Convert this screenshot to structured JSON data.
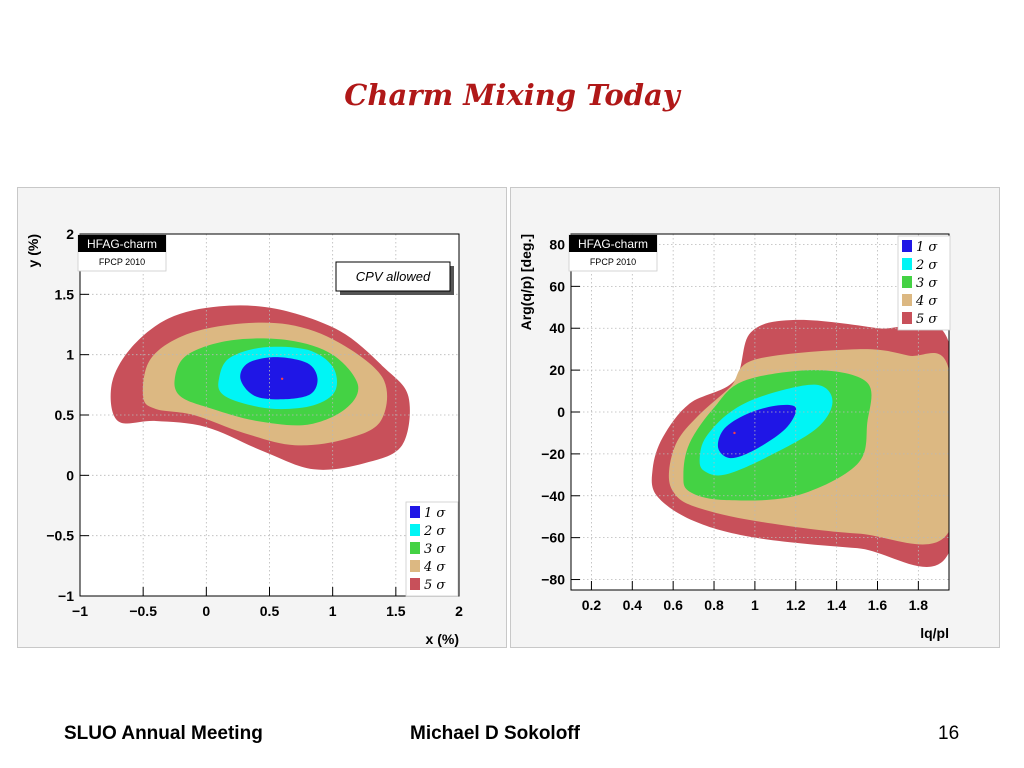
{
  "slide": {
    "title": "Charm Mixing Today",
    "footer_left": "SLUO Annual Meeting",
    "footer_center": "Michael D Sokoloff",
    "page_number": "16"
  },
  "colors": {
    "1sigma": "#1f16e6",
    "2sigma": "#00f5f5",
    "3sigma": "#44d244",
    "4sigma": "#dcb882",
    "5sigma": "#c8505a",
    "frame": "#000000",
    "grid": "#b8b8b8"
  },
  "chart_data": [
    {
      "type": "contour",
      "xlabel": "x (%)",
      "ylabel": "y (%)",
      "xlim": [
        -1,
        2
      ],
      "ylim": [
        -1,
        2
      ],
      "xticks": [
        "−1",
        "−0.5",
        "0",
        "0.5",
        "1",
        "1.5",
        "2"
      ],
      "yticks": [
        "−1",
        "−0.5",
        "0",
        "0.5",
        "1",
        "1.5",
        "2"
      ],
      "grid": true,
      "tag": "HFAG-charm",
      "tag_sub": "FPCP  2010",
      "annotation": "CPV allowed",
      "legend": [
        "1 σ",
        "2 σ",
        "3 σ",
        "4 σ",
        "5 σ"
      ],
      "legend_position": "bottom-right",
      "best_fit": [
        0.6,
        0.8
      ],
      "contours": [
        {
          "level": "5sigma",
          "points": [
            [
              -0.7,
              0.45
            ],
            [
              -0.75,
              0.75
            ],
            [
              -0.6,
              1.05
            ],
            [
              -0.3,
              1.3
            ],
            [
              0.1,
              1.4
            ],
            [
              0.55,
              1.38
            ],
            [
              1.05,
              1.2
            ],
            [
              1.4,
              0.9
            ],
            [
              1.6,
              0.65
            ],
            [
              1.55,
              0.25
            ],
            [
              1.25,
              0.1
            ],
            [
              0.85,
              0.05
            ],
            [
              0.45,
              0.2
            ],
            [
              0,
              0.4
            ],
            [
              -0.4,
              0.45
            ]
          ]
        },
        {
          "level": "4sigma",
          "points": [
            [
              -0.5,
              0.65
            ],
            [
              -0.45,
              0.95
            ],
            [
              -0.2,
              1.15
            ],
            [
              0.2,
              1.25
            ],
            [
              0.65,
              1.25
            ],
            [
              1.05,
              1.1
            ],
            [
              1.4,
              0.8
            ],
            [
              1.38,
              0.45
            ],
            [
              1.1,
              0.3
            ],
            [
              0.7,
              0.25
            ],
            [
              0.3,
              0.35
            ],
            [
              -0.1,
              0.5
            ],
            [
              -0.4,
              0.55
            ]
          ]
        },
        {
          "level": "3sigma",
          "points": [
            [
              -0.25,
              0.8
            ],
            [
              -0.15,
              1.0
            ],
            [
              0.2,
              1.12
            ],
            [
              0.65,
              1.12
            ],
            [
              1.0,
              1.0
            ],
            [
              1.2,
              0.75
            ],
            [
              1.1,
              0.55
            ],
            [
              0.8,
              0.42
            ],
            [
              0.4,
              0.45
            ],
            [
              0.05,
              0.55
            ],
            [
              -0.2,
              0.65
            ]
          ]
        },
        {
          "level": "2sigma",
          "points": [
            [
              0.1,
              0.8
            ],
            [
              0.18,
              0.97
            ],
            [
              0.45,
              1.06
            ],
            [
              0.8,
              1.04
            ],
            [
              1.0,
              0.9
            ],
            [
              1.02,
              0.7
            ],
            [
              0.85,
              0.58
            ],
            [
              0.55,
              0.55
            ],
            [
              0.28,
              0.6
            ],
            [
              0.12,
              0.68
            ]
          ]
        },
        {
          "level": "1sigma",
          "points": [
            [
              0.27,
              0.8
            ],
            [
              0.33,
              0.93
            ],
            [
              0.55,
              0.98
            ],
            [
              0.8,
              0.93
            ],
            [
              0.88,
              0.8
            ],
            [
              0.82,
              0.67
            ],
            [
              0.6,
              0.63
            ],
            [
              0.38,
              0.66
            ]
          ]
        }
      ]
    },
    {
      "type": "contour",
      "xlabel": "lq/pl",
      "ylabel": "Arg(q/p) [deg.]",
      "xlim": [
        0.1,
        1.95
      ],
      "ylim": [
        -85,
        85
      ],
      "xticks": [
        "0.2",
        "0.4",
        "0.6",
        "0.8",
        "1",
        "1.2",
        "1.4",
        "1.6",
        "1.8"
      ],
      "yticks": [
        "−80",
        "−60",
        "−40",
        "−20",
        "0",
        "20",
        "40",
        "60",
        "80"
      ],
      "grid": true,
      "tag": "HFAG-charm",
      "tag_sub": "FPCP  2010",
      "legend": [
        "1 σ",
        "2 σ",
        "3 σ",
        "4 σ",
        "5 σ"
      ],
      "legend_position": "top-right",
      "best_fit": [
        0.9,
        -10
      ],
      "contours": [
        {
          "level": "5sigma",
          "points": [
            [
              0.5,
              -27
            ],
            [
              0.55,
              -12
            ],
            [
              0.68,
              4
            ],
            [
              0.9,
              15
            ],
            [
              0.98,
              38
            ],
            [
              1.2,
              44
            ],
            [
              1.6,
              40
            ],
            [
              1.95,
              33
            ],
            [
              1.95,
              -67
            ],
            [
              1.5,
              -65
            ],
            [
              1.0,
              -60
            ],
            [
              0.7,
              -52
            ],
            [
              0.52,
              -40
            ]
          ]
        },
        {
          "level": "4sigma",
          "points": [
            [
              0.58,
              -28
            ],
            [
              0.62,
              -14
            ],
            [
              0.72,
              -2
            ],
            [
              0.88,
              12
            ],
            [
              1.0,
              25
            ],
            [
              1.5,
              30
            ],
            [
              1.75,
              27
            ],
            [
              1.95,
              20
            ],
            [
              1.95,
              -57
            ],
            [
              1.5,
              -58
            ],
            [
              1.0,
              -52
            ],
            [
              0.7,
              -45
            ],
            [
              0.6,
              -38
            ]
          ]
        },
        {
          "level": "3sigma",
          "points": [
            [
              0.65,
              -30
            ],
            [
              0.68,
              -15
            ],
            [
              0.8,
              2
            ],
            [
              0.95,
              15
            ],
            [
              1.3,
              20
            ],
            [
              1.55,
              14
            ],
            [
              1.55,
              -5
            ],
            [
              1.5,
              -25
            ],
            [
              1.2,
              -40
            ],
            [
              0.85,
              -42
            ],
            [
              0.68,
              -38
            ]
          ]
        },
        {
          "level": "2sigma",
          "points": [
            [
              0.73,
              -22
            ],
            [
              0.76,
              -12
            ],
            [
              0.88,
              0
            ],
            [
              1.05,
              8
            ],
            [
              1.3,
              13
            ],
            [
              1.38,
              5
            ],
            [
              1.3,
              -8
            ],
            [
              1.05,
              -22
            ],
            [
              0.85,
              -30
            ],
            [
              0.75,
              -28
            ]
          ]
        },
        {
          "level": "1sigma",
          "points": [
            [
              0.82,
              -17
            ],
            [
              0.85,
              -8
            ],
            [
              0.96,
              -1
            ],
            [
              1.1,
              3
            ],
            [
              1.2,
              2
            ],
            [
              1.15,
              -8
            ],
            [
              1.0,
              -18
            ],
            [
              0.88,
              -22
            ]
          ]
        }
      ]
    }
  ]
}
